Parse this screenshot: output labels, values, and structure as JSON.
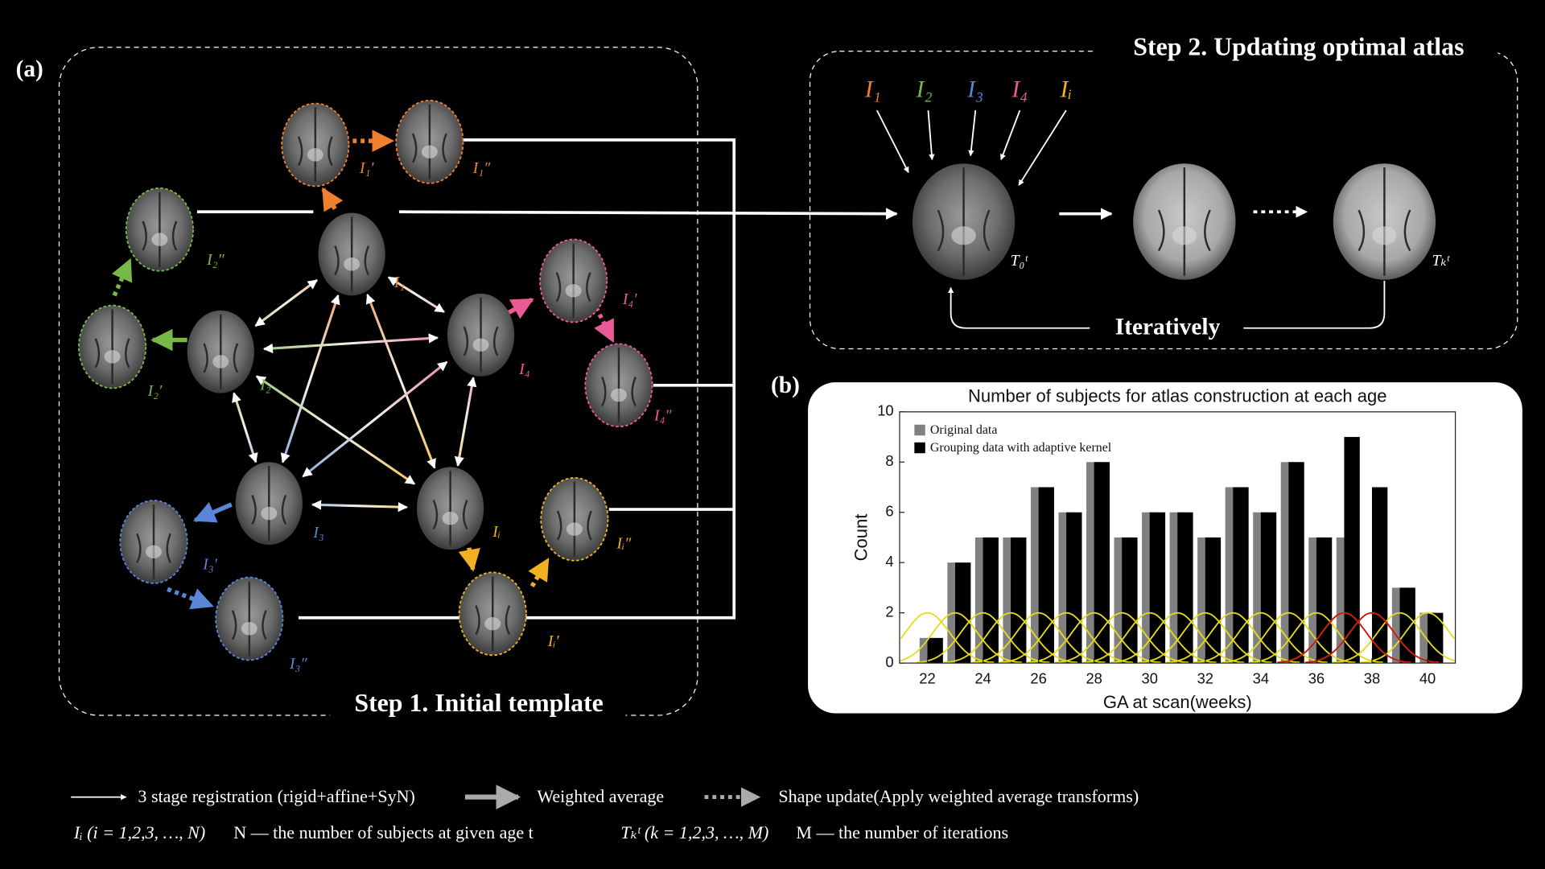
{
  "panel_a": {
    "label": "(a)",
    "step1_title": "Step 1. Initial template",
    "nodes": [
      "I₁",
      "I₂",
      "I₃",
      "I₄",
      "Iᵢ",
      "I₁′",
      "I₁″",
      "I₂′",
      "I₂″",
      "I₃′",
      "I₃″",
      "I₄′",
      "I₄″",
      "Iᵢ′",
      "Iᵢ″"
    ]
  },
  "step2": {
    "title": "Step 2. Updating optimal atlas",
    "inputs": [
      "I₁",
      "I₂",
      "I₃",
      "I₄",
      "Iᵢ"
    ],
    "templates": [
      "T₀ᵗ",
      "Tₖᵗ"
    ],
    "loop_label": "Iteratively"
  },
  "panel_b": {
    "label": "(b)"
  },
  "chart_data": {
    "type": "bar",
    "title": "Number of subjects for atlas construction at each age",
    "x_label": "GA at scan(weeks)",
    "y_label": "Count",
    "x": [
      22,
      23,
      24,
      25,
      26,
      27,
      28,
      29,
      30,
      31,
      32,
      33,
      34,
      35,
      36,
      37,
      38,
      39,
      40
    ],
    "series": [
      {
        "name": "Original data",
        "color": "#808080",
        "values": [
          1,
          4,
          5,
          5,
          7,
          6,
          8,
          5,
          6,
          6,
          5,
          7,
          6,
          8,
          5,
          5,
          0,
          3,
          2
        ]
      },
      {
        "name": "Grouping data with adaptive kernel",
        "color": "#000000",
        "values": [
          1,
          4,
          5,
          5,
          7,
          6,
          8,
          5,
          6,
          6,
          5,
          7,
          6,
          8,
          5,
          9,
          7,
          3,
          2
        ]
      }
    ],
    "xlim": [
      21,
      41
    ],
    "xticks": [
      22,
      24,
      26,
      28,
      30,
      32,
      34,
      36,
      38,
      40
    ],
    "ylim": [
      0,
      10
    ],
    "yticks": [
      0,
      2,
      4,
      6,
      8,
      10
    ],
    "kernels": {
      "peak": 2,
      "sigma": 0.8,
      "series": [
        {
          "color": "#e6dc1e",
          "centers": [
            22,
            23,
            24,
            25,
            26,
            27,
            28,
            29,
            30,
            31,
            32,
            33,
            34,
            35,
            36,
            37,
            38,
            39,
            40
          ]
        },
        {
          "color": "#c81414",
          "centers": [
            37,
            38
          ]
        }
      ]
    },
    "legend": "top-left"
  },
  "legend": {
    "arrows": [
      "3 stage registration (rigid+affine+SyN)",
      "Weighted average",
      "Shape update(Apply weighted average transforms)"
    ],
    "notes": [
      "Iᵢ (i = 1,2,3, …, N)",
      "N — the number of subjects at given age t",
      "Tₖᵗ (k = 1,2,3, …, M)",
      "M — the number of iterations"
    ]
  }
}
